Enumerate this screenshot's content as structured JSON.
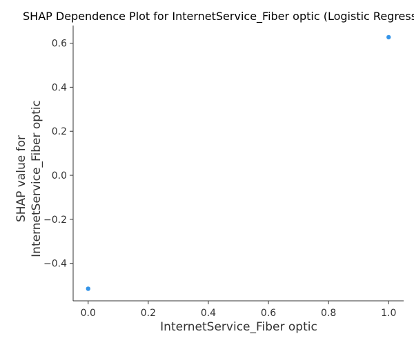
{
  "chart_data": {
    "type": "scatter",
    "title": "SHAP Dependence Plot for InternetService_Fiber optic (Logistic Regression)",
    "xlabel": "InternetService_Fiber optic",
    "ylabel_lines": [
      "SHAP value for",
      "InternetService_Fiber optic"
    ],
    "xlim": [
      -0.05,
      1.05
    ],
    "ylim": [
      -0.57,
      0.68
    ],
    "xticks": [
      0.0,
      0.2,
      0.4,
      0.6,
      0.8,
      1.0
    ],
    "yticks": [
      -0.4,
      -0.2,
      0.0,
      0.2,
      0.4,
      0.6
    ],
    "xtick_labels": [
      "0.0",
      "0.2",
      "0.4",
      "0.6",
      "0.8",
      "1.0"
    ],
    "ytick_labels": [
      "−0.4",
      "−0.2",
      "0.0",
      "0.2",
      "0.4",
      "0.6"
    ],
    "grid": false,
    "legend": "none",
    "series": [
      {
        "color": "#1e88e5",
        "x": [
          0.0,
          1.0
        ],
        "y": [
          -0.515,
          0.627
        ]
      }
    ]
  }
}
